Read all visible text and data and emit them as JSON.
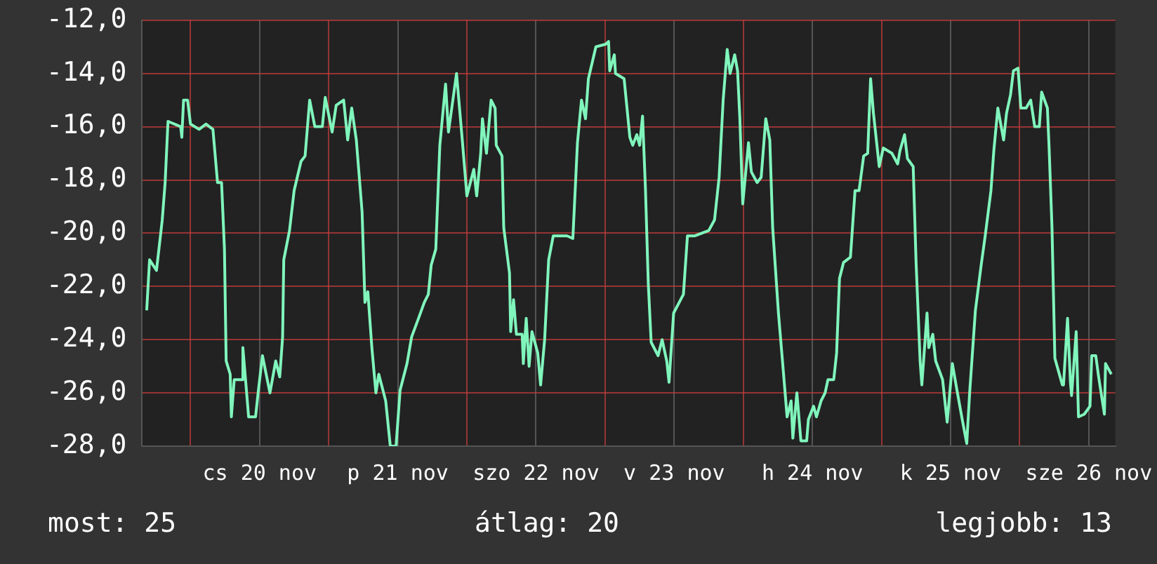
{
  "chart_data": {
    "type": "line",
    "xlim": [
      "--11-19T15:36",
      "--11-26T16:36"
    ],
    "xticks": [
      {
        "value": "--11-20T00:00",
        "label": null
      },
      {
        "value": "--11-20T12:00",
        "label": "cs 20 nov"
      },
      {
        "value": "--11-21T00:00",
        "label": null
      },
      {
        "value": "--11-21T12:00",
        "label": "p 21 nov"
      },
      {
        "value": "--11-22T00:00",
        "label": null
      },
      {
        "value": "--11-22T12:00",
        "label": "szo 22 nov"
      },
      {
        "value": "--11-23T00:00",
        "label": null
      },
      {
        "value": "--11-23T12:00",
        "label": "v 23 nov"
      },
      {
        "value": "--11-24T00:00",
        "label": null
      },
      {
        "value": "--11-24T12:00",
        "label": "h 24 nov"
      },
      {
        "value": "--11-25T00:00",
        "label": null
      },
      {
        "value": "--11-25T12:00",
        "label": "k 25 nov"
      },
      {
        "value": "--11-26T00:00",
        "label": null
      },
      {
        "value": "--11-26T12:00",
        "label": "sze 26 nov"
      }
    ],
    "ylim": [
      -28,
      -12
    ],
    "yticks": [
      {
        "value": -28,
        "label": "-28,0"
      },
      {
        "value": -26,
        "label": "-26,0"
      },
      {
        "value": -24,
        "label": "-24,0"
      },
      {
        "value": -22,
        "label": "-22,0"
      },
      {
        "value": -20,
        "label": "-20,0"
      },
      {
        "value": -18,
        "label": "-18,0"
      },
      {
        "value": -16,
        "label": "-16,0"
      },
      {
        "value": -14,
        "label": "-14,0"
      },
      {
        "value": -12,
        "label": "-12,0"
      }
    ],
    "grid": true,
    "legend": false,
    "marker": "none",
    "line_style": "solid",
    "annotations": [
      "most: 25",
      "átlag: 20",
      "legjobb: 13"
    ],
    "series": [
      {
        "color": "#80f5bc",
        "x": [
          "--11-19T16:24",
          "--11-19T16:54",
          "--11-19T18:06",
          "--11-19T19:06",
          "--11-19T19:36",
          "--11-19T20:06",
          "--11-19T22:18",
          "--11-19T22:30",
          "--11-19T22:48",
          "--11-19T23:30",
          "--11-20T00:00",
          "--11-20T01:30",
          "--11-20T02:42",
          "--11-20T03:54",
          "--11-20T04:42",
          "--11-20T05:24",
          "--11-20T05:54",
          "--11-20T06:12",
          "--11-20T06:54",
          "--11-20T07:06",
          "--11-20T07:36",
          "--11-20T08:54",
          "--11-20T09:06",
          "--11-20T09:36",
          "--11-20T10:06",
          "--11-20T11:18",
          "--11-20T11:48",
          "--11-20T12:30",
          "--11-20T13:48",
          "--11-20T14:48",
          "--11-20T15:30",
          "--11-20T16:00",
          "--11-20T16:12",
          "--11-20T17:12",
          "--11-20T18:00",
          "--11-20T19:12",
          "--11-20T19:54",
          "--11-20T20:42",
          "--11-20T21:36",
          "--11-20T22:54",
          "--11-20T23:24",
          "--11-21T00:36",
          "--11-21T01:18",
          "--11-21T02:36",
          "--11-21T03:18",
          "--11-21T04:00",
          "--11-21T04:48",
          "--11-21T05:48",
          "--11-21T06:18",
          "--11-21T06:48",
          "--11-21T07:30",
          "--11-21T08:12",
          "--11-21T08:42",
          "--11-21T09:54",
          "--11-21T10:42",
          "--11-21T11:42",
          "--11-21T12:24",
          "--11-21T13:36",
          "--11-21T14:24",
          "--11-21T15:36",
          "--11-21T16:36",
          "--11-21T17:18",
          "--11-21T17:48",
          "--11-21T18:36",
          "--11-21T19:18",
          "--11-21T20:18",
          "--11-21T20:48",
          "--11-21T22:12",
          "--11-21T23:12",
          "--11-22T00:00",
          "--11-22T01:12",
          "--11-22T01:42",
          "--11-22T02:24",
          "--11-22T02:42",
          "--11-22T03:24",
          "--11-22T04:12",
          "--11-22T04:54",
          "--11-22T05:06",
          "--11-22T06:06",
          "--11-22T06:24",
          "--11-22T07:24",
          "--11-22T07:36",
          "--11-22T08:06",
          "--11-22T08:36",
          "--11-22T09:36",
          "--11-22T09:48",
          "--11-22T10:18",
          "--11-22T10:48",
          "--11-22T11:18",
          "--11-22T12:18",
          "--11-22T12:48",
          "--11-22T13:30",
          "--11-22T14:12",
          "--11-22T15:00",
          "--11-22T16:12",
          "--11-22T17:24",
          "--11-22T18:24",
          "--11-22T19:12",
          "--11-22T19:54",
          "--11-22T20:36",
          "--11-22T21:06",
          "--11-22T22:24",
          "--11-23T00:06",
          "--11-23T00:36",
          "--11-23T00:48",
          "--11-23T01:36",
          "--11-23T01:48",
          "--11-23T03:18",
          "--11-23T04:18",
          "--11-23T04:48",
          "--11-23T05:30",
          "--11-23T06:00",
          "--11-23T06:30",
          "--11-23T07:00",
          "--11-23T07:30",
          "--11-23T08:00",
          "--11-23T09:12",
          "--11-23T09:54",
          "--11-23T10:42",
          "--11-23T11:06",
          "--11-23T11:54",
          "--11-23T13:36",
          "--11-23T14:18",
          "--11-23T15:36",
          "--11-23T18:00",
          "--11-23T19:00",
          "--11-23T19:48",
          "--11-23T20:30",
          "--11-23T21:12",
          "--11-23T21:42",
          "--11-23T22:30",
          "--11-23T23:00",
          "--11-23T23:24",
          "--11-23T23:54",
          "--11-24T00:54",
          "--11-24T01:24",
          "--11-24T02:24",
          "--11-24T03:06",
          "--11-24T03:54",
          "--11-24T04:36",
          "--11-24T05:06",
          "--11-24T06:06",
          "--11-24T06:48",
          "--11-24T07:36",
          "--11-24T08:18",
          "--11-24T08:36",
          "--11-24T09:18",
          "--11-24T10:00",
          "--11-24T11:00",
          "--11-24T11:18",
          "--11-24T12:12",
          "--11-24T12:42",
          "--11-24T13:30",
          "--11-24T14:12",
          "--11-24T14:42",
          "--11-24T15:42",
          "--11-24T16:12",
          "--11-24T16:42",
          "--11-24T17:24",
          "--11-24T18:36",
          "--11-24T19:24",
          "--11-24T20:06",
          "--11-24T20:54",
          "--11-24T21:36",
          "--11-24T22:06",
          "--11-24T22:36",
          "--11-24T23:36",
          "--11-25T00:18",
          "--11-25T01:48",
          "--11-25T02:48",
          "--11-25T03:12",
          "--11-25T04:00",
          "--11-25T04:30",
          "--11-25T05:30",
          "--11-25T06:00",
          "--11-25T06:42",
          "--11-25T07:00",
          "--11-25T07:54",
          "--11-25T08:12",
          "--11-25T08:54",
          "--11-25T09:24",
          "--11-25T10:36",
          "--11-25T11:24",
          "--11-25T12:18",
          "--11-25T13:06",
          "--11-25T14:06",
          "--11-25T14:48",
          "--11-25T15:18",
          "--11-25T16:18",
          "--11-25T17:18",
          "--11-25T18:00",
          "--11-25T19:00",
          "--11-25T19:30",
          "--11-25T20:12",
          "--11-25T21:12",
          "--11-25T21:42",
          "--11-25T22:24",
          "--11-25T22:54",
          "--11-25T23:42",
          "--11-26T00:12",
          "--11-26T01:06",
          "--11-26T01:54",
          "--11-26T02:36",
          "--11-26T03:24",
          "--11-26T03:48",
          "--11-26T04:48",
          "--11-26T05:06",
          "--11-26T05:36",
          "--11-26T06:06",
          "--11-26T07:24",
          "--11-26T07:36",
          "--11-26T08:18",
          "--11-26T08:48",
          "--11-26T09:00",
          "--11-26T09:48",
          "--11-26T10:12",
          "--11-26T11:12",
          "--11-26T12:12",
          "--11-26T12:30",
          "--11-26T13:12",
          "--11-26T13:42",
          "--11-26T14:42",
          "--11-26T14:54",
          "--11-26T15:54"
        ],
        "values": [
          -22.9,
          -21.0,
          -21.4,
          -19.5,
          -18.1,
          -15.8,
          -16.0,
          -16.4,
          -15.0,
          -15.0,
          -15.9,
          -16.1,
          -15.9,
          -16.1,
          -18.1,
          -18.1,
          -20.6,
          -24.8,
          -25.3,
          -26.9,
          -25.5,
          -25.5,
          -24.3,
          -25.6,
          -26.9,
          -26.9,
          -25.9,
          -24.6,
          -26.0,
          -24.8,
          -25.4,
          -23.9,
          -21.0,
          -19.9,
          -18.4,
          -17.3,
          -17.1,
          -15.0,
          -16.0,
          -16.0,
          -14.9,
          -16.2,
          -15.2,
          -15.0,
          -16.5,
          -15.3,
          -16.5,
          -19.2,
          -22.6,
          -22.2,
          -24.3,
          -26.0,
          -25.3,
          -26.3,
          -28.0,
          -28.0,
          -25.9,
          -24.9,
          -23.9,
          -23.2,
          -22.6,
          -22.3,
          -21.2,
          -20.6,
          -16.7,
          -14.4,
          -16.2,
          -14.0,
          -16.5,
          -18.6,
          -17.6,
          -18.6,
          -17.0,
          -15.7,
          -17.0,
          -15.0,
          -15.3,
          -16.7,
          -17.1,
          -19.8,
          -21.5,
          -23.7,
          -22.5,
          -23.8,
          -23.8,
          -24.9,
          -23.2,
          -25.0,
          -23.7,
          -24.5,
          -25.7,
          -24.0,
          -21.0,
          -20.1,
          -20.1,
          -20.1,
          -20.2,
          -16.6,
          -15.0,
          -15.7,
          -14.2,
          -13.0,
          -12.9,
          -12.8,
          -13.9,
          -13.3,
          -14.0,
          -14.2,
          -16.4,
          -16.7,
          -16.3,
          -16.7,
          -15.6,
          -18.3,
          -21.9,
          -24.1,
          -24.6,
          -24.0,
          -24.8,
          -25.6,
          -23.0,
          -22.3,
          -20.1,
          -20.1,
          -19.9,
          -19.5,
          -17.9,
          -15.0,
          -13.1,
          -14.0,
          -13.3,
          -13.9,
          -15.7,
          -18.9,
          -16.6,
          -17.7,
          -18.1,
          -17.9,
          -15.7,
          -16.5,
          -19.8,
          -23.0,
          -24.8,
          -26.9,
          -26.3,
          -27.7,
          -26.0,
          -27.8,
          -27.8,
          -27.0,
          -26.5,
          -26.9,
          -26.3,
          -26.0,
          -25.5,
          -25.5,
          -24.5,
          -21.7,
          -21.1,
          -20.9,
          -18.4,
          -18.4,
          -17.1,
          -17.0,
          -14.2,
          -15.5,
          -17.5,
          -16.8,
          -17.0,
          -17.4,
          -16.9,
          -16.3,
          -17.2,
          -17.5,
          -21.1,
          -24.8,
          -25.7,
          -23.0,
          -24.3,
          -23.8,
          -24.8,
          -25.5,
          -27.1,
          -24.9,
          -25.9,
          -27.1,
          -27.9,
          -26.0,
          -22.9,
          -21.2,
          -20.1,
          -18.4,
          -16.9,
          -15.3,
          -16.5,
          -15.5,
          -14.8,
          -13.9,
          -13.8,
          -15.3,
          -15.3,
          -15.0,
          -16.0,
          -16.0,
          -14.7,
          -15.3,
          -16.8,
          -19.8,
          -24.7,
          -25.7,
          -25.7,
          -23.2,
          -25.6,
          -26.1,
          -23.7,
          -26.9,
          -26.8,
          -26.5,
          -24.6,
          -24.6,
          -25.4,
          -26.8,
          -24.9,
          -25.3
        ]
      }
    ]
  }
}
